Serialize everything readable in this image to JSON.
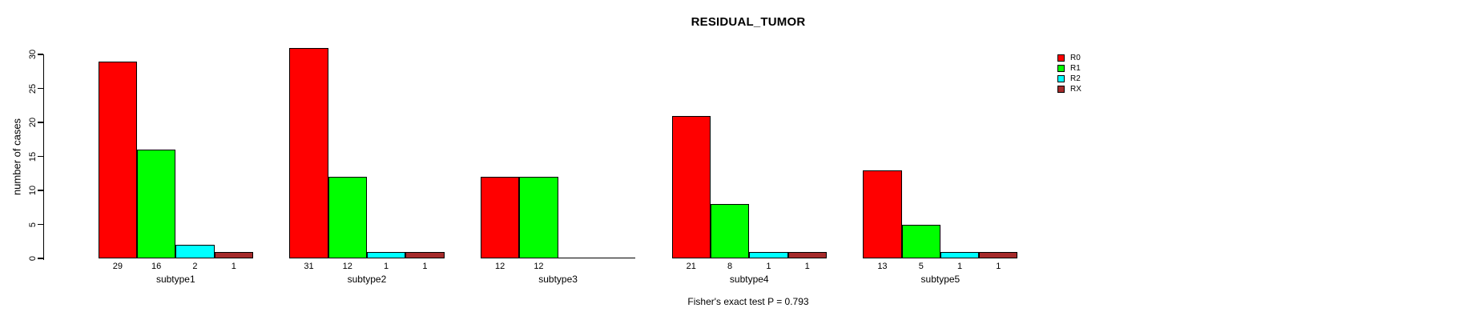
{
  "chart_data": {
    "type": "bar",
    "title": "RESIDUAL_TUMOR",
    "xlabel": "",
    "ylabel": "number of cases",
    "ylim": [
      0,
      30
    ],
    "yticks": [
      0,
      5,
      10,
      15,
      20,
      25,
      30
    ],
    "grid": false,
    "legend_position": "top-right",
    "legend_frame": false,
    "categories": [
      "subtype1",
      "subtype2",
      "subtype3",
      "subtype4",
      "subtype5"
    ],
    "series": [
      {
        "name": "R0",
        "color": "#FF0000",
        "values": [
          29,
          31,
          12,
          21,
          13
        ]
      },
      {
        "name": "R1",
        "color": "#00FF00",
        "values": [
          16,
          12,
          12,
          8,
          5
        ]
      },
      {
        "name": "R2",
        "color": "#00FFFF",
        "values": [
          2,
          1,
          0,
          1,
          1
        ]
      },
      {
        "name": "RX",
        "color": "#A52A2A",
        "values": [
          1,
          1,
          0,
          1,
          1
        ]
      }
    ],
    "bar_value_labels": {
      "subtype1": [
        29,
        16,
        2,
        1
      ],
      "subtype2": [
        31,
        12,
        1,
        1
      ],
      "subtype3": [
        12,
        12,
        null,
        null
      ],
      "subtype4": [
        21,
        8,
        1,
        1
      ],
      "subtype5": [
        13,
        5,
        1,
        1
      ]
    },
    "annotation": "Fisher's exact test P = 0.793",
    "colors": {
      "axis": "#000000",
      "text": "#000000",
      "background": "#FFFFFF"
    }
  }
}
